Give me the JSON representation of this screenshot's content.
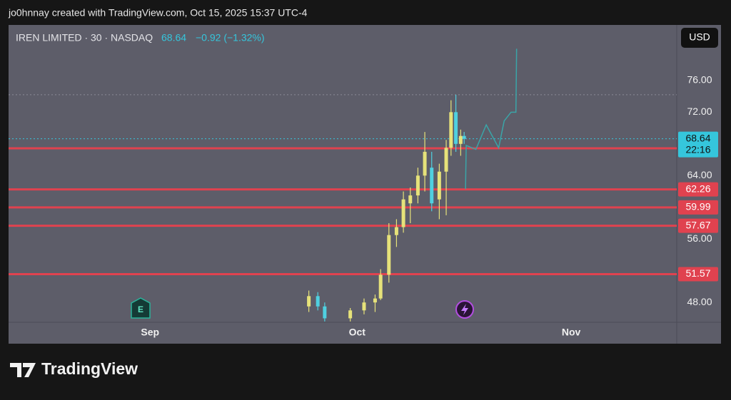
{
  "header": "jo0hnnay created with TradingView.com, Oct 15, 2025 15:37 UTC-4",
  "brand": "TradingView",
  "chart_data": {
    "type": "candlestick",
    "symbol": "IREN LIMITED · 30 · NASDAQ",
    "last_price": 68.64,
    "change_label": "−0.92 (−1.32%)",
    "countdown": "22:16",
    "currency": "USD",
    "earnings_marker": "E",
    "up_color": "#e6e27a",
    "down_color": "#4fd0e0",
    "x": [
      267.0,
      268.3,
      269.3,
      273.0,
      275.0,
      276.6,
      277.4,
      278.6,
      279.7,
      280.7,
      281.7,
      282.8,
      283.8,
      284.8,
      285.9,
      286.9,
      287.6,
      288.3,
      289.0,
      289.5
    ],
    "open": [
      47.5,
      48.8,
      47.5,
      46.0,
      47.0,
      48.0,
      48.5,
      51.5,
      56.5,
      57.5,
      60.5,
      61.5,
      64.0,
      65.0,
      61.0,
      64.5,
      67.5,
      72.0,
      68.0,
      69.0
    ],
    "high": [
      49.5,
      49.3,
      48.0,
      47.3,
      48.5,
      49.0,
      52.2,
      58.0,
      58.5,
      62.0,
      62.5,
      65.0,
      69.5,
      67.0,
      65.5,
      68.5,
      73.5,
      74.2,
      69.8,
      69.5
    ],
    "low": [
      46.8,
      47.0,
      45.6,
      45.6,
      46.5,
      46.8,
      48.3,
      50.5,
      55.0,
      56.8,
      58.0,
      60.5,
      62.0,
      59.5,
      58.5,
      59.0,
      66.5,
      67.0,
      66.5,
      68.0
    ],
    "close": [
      48.8,
      47.5,
      46.0,
      47.0,
      48.0,
      48.5,
      51.5,
      56.5,
      57.5,
      61.0,
      61.5,
      64.0,
      67.0,
      60.5,
      64.5,
      67.5,
      72.0,
      68.0,
      69.0,
      68.64
    ],
    "projection": {
      "color": "#3aa5a8",
      "x": [
        289.7,
        289.8,
        291.2,
        292.7,
        294.5,
        295.3,
        296.3,
        297.0,
        297.1
      ],
      "y": [
        62.3,
        67.8,
        67.3,
        70.4,
        67.5,
        70.9,
        72.0,
        72.0,
        80.0
      ]
    },
    "levels": {
      "color": "#e0424f",
      "values": [
        67.44,
        62.26,
        59.99,
        57.67,
        51.57
      ]
    },
    "xlim": [
      223.5,
      320.3
    ],
    "ylim": [
      45.5,
      83.0
    ],
    "xticks": [
      {
        "value": 244,
        "label": "Sep"
      },
      {
        "value": 274,
        "label": "Oct"
      },
      {
        "value": 305,
        "label": "Nov"
      }
    ],
    "yticks": [
      {
        "value": 48,
        "label": "48.00"
      },
      {
        "value": 56,
        "label": "56.00"
      },
      {
        "value": 64,
        "label": "64.00"
      },
      {
        "value": 72,
        "label": "72.00"
      },
      {
        "value": 76,
        "label": "76.00"
      }
    ]
  }
}
